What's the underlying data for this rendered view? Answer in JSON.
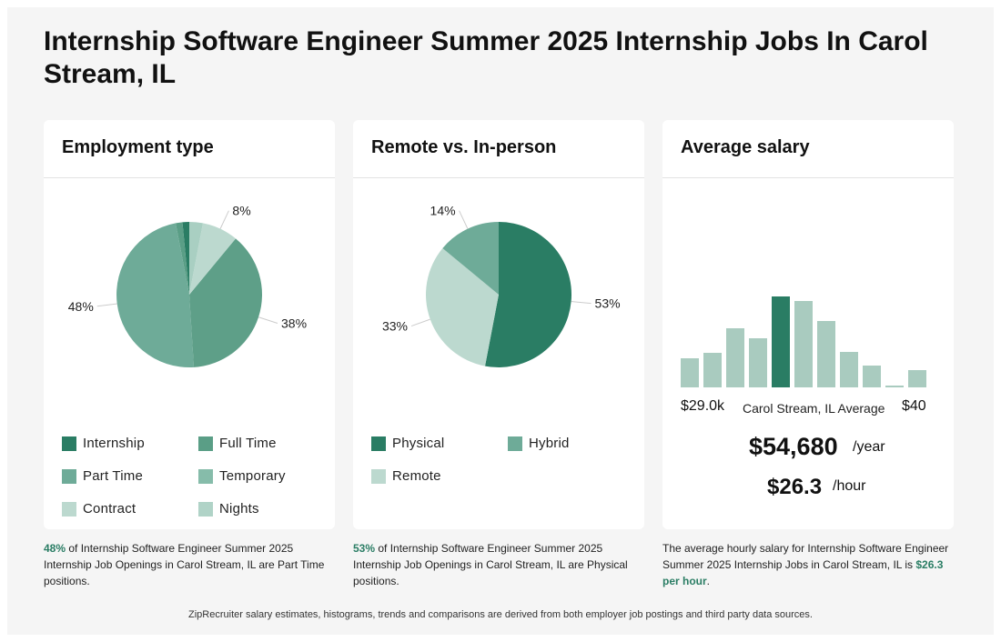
{
  "page": {
    "title": "Internship Software Engineer Summer 2025 Internship Jobs In Carol Stream, IL",
    "footer": "ZipRecruiter salary estimates, histograms, trends and comparisons are derived from both employer job postings and third party data sources."
  },
  "employment": {
    "heading": "Employment type",
    "caption_pct": "48%",
    "caption_text": " of Internship Software Engineer Summer 2025 Internship Job Openings in Carol Stream, IL are Part Time positions."
  },
  "remote": {
    "heading": "Remote vs. In-person",
    "caption_pct": "53%",
    "caption_text": " of Internship Software Engineer Summer 2025 Internship Job Openings in Carol Stream, IL are Physical positions."
  },
  "salary": {
    "heading": "Average salary",
    "min_label": "$29.0k",
    "mid_label": "Carol Stream, IL Average",
    "max_label": "$40",
    "yearly": "$54,680",
    "yearly_unit": "/year",
    "hourly": "$26.3",
    "hourly_unit": "/hour",
    "caption_text": "The average hourly salary for Internship Software Engineer Summer 2025 Internship Jobs in Carol Stream, IL is ",
    "caption_value": "$26.3 per hour",
    "caption_end": "."
  },
  "chart_data": [
    {
      "type": "pie",
      "title": "Employment type",
      "slices": [
        {
          "name": "Internship",
          "value": 1.5,
          "color": "#2a7d64",
          "label": ""
        },
        {
          "name": "Full Time",
          "value": 1.5,
          "color": "#5a9e86",
          "label": ""
        },
        {
          "name": "Part Time",
          "value": 48,
          "color": "#6eab98",
          "label": "48%"
        },
        {
          "name": "Temporary",
          "value": 38,
          "color": "#5e9f88",
          "label": "38%"
        },
        {
          "name": "Contract",
          "value": 8,
          "color": "#bcd9cf",
          "label": "8%"
        },
        {
          "name": "Nights",
          "value": 3,
          "color": "#a9cfc2",
          "label": ""
        }
      ],
      "legend": [
        {
          "name": "Internship",
          "color": "#2a7d64"
        },
        {
          "name": "Full Time",
          "color": "#5a9e86"
        },
        {
          "name": "Part Time",
          "color": "#6eab98"
        },
        {
          "name": "Temporary",
          "color": "#86bcaa"
        },
        {
          "name": "Contract",
          "color": "#bcd9cf"
        },
        {
          "name": "Nights",
          "color": "#b0d3c7"
        }
      ]
    },
    {
      "type": "pie",
      "title": "Remote vs. In-person",
      "slices": [
        {
          "name": "Physical",
          "value": 53,
          "color": "#2a7d64",
          "label": "53%"
        },
        {
          "name": "Remote",
          "value": 33,
          "color": "#bcd9cf",
          "label": "33%"
        },
        {
          "name": "Hybrid",
          "value": 14,
          "color": "#6eab98",
          "label": "14%"
        }
      ],
      "legend": [
        {
          "name": "Physical",
          "color": "#2a7d64"
        },
        {
          "name": "Hybrid",
          "color": "#6eab98"
        },
        {
          "name": "Remote",
          "color": "#bcd9cf"
        }
      ]
    },
    {
      "type": "bar",
      "title": "Average salary",
      "values": [
        32,
        38,
        65,
        54,
        100,
        95,
        73,
        39,
        24,
        2,
        19
      ],
      "highlight_index": 4,
      "color": "#a9cbbf",
      "highlight_color": "#2a7d64",
      "ylim": [
        0,
        100
      ]
    }
  ]
}
